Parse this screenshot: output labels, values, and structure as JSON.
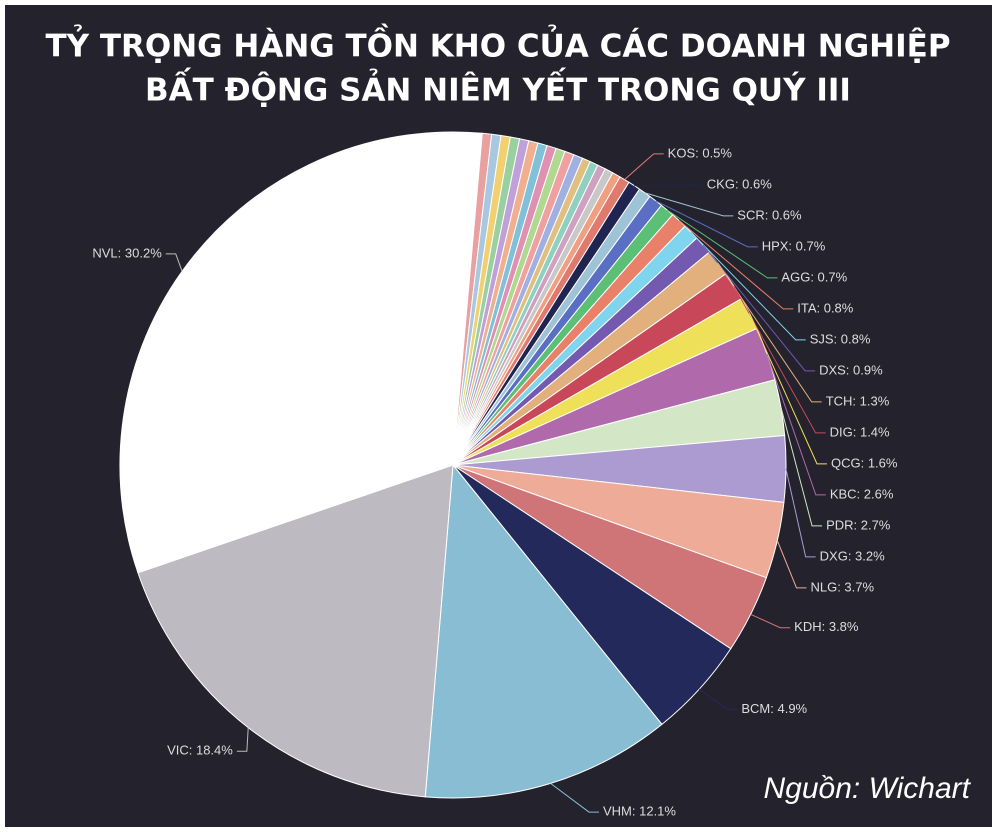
{
  "chart_data": {
    "type": "pie",
    "title": [
      "TỶ TRỌNG HÀNG TỒN KHO CỦA CÁC DOANH NGHIỆP",
      "BẤT ĐỘNG SẢN NIÊM YẾT TRONG QUÝ III"
    ],
    "source": "Nguồn: Wichart",
    "values": [
      1.4,
      0.45,
      0.45,
      0.45,
      0.45,
      0.45,
      0.45,
      0.45,
      0.45,
      0.45,
      0.45,
      0.45,
      0.4,
      0.4,
      0.4,
      0.4,
      0.4,
      0.5,
      0.6,
      0.6,
      0.7,
      0.7,
      0.8,
      0.8,
      0.9,
      1.3,
      1.4,
      1.6,
      2.6,
      2.7,
      3.2,
      3.7,
      3.8,
      4.9,
      12.1,
      18.4,
      30.2
    ],
    "value_labels": [
      null,
      null,
      null,
      null,
      null,
      null,
      null,
      null,
      null,
      null,
      null,
      null,
      null,
      null,
      null,
      null,
      null,
      "KOS: 0.5%",
      "CKG: 0.6%",
      "SCR: 0.6%",
      "HPX: 0.7%",
      "AGG: 0.7%",
      "ITA: 0.8%",
      "SJS: 0.8%",
      "DXS: 0.9%",
      "TCH: 1.3%",
      "DIG: 1.4%",
      "QCG: 1.6%",
      "KBC: 2.6%",
      "PDR: 2.7%",
      "DXG: 3.2%",
      "NLG: 3.7%",
      "KDH: 3.8%",
      "BCM: 4.9%",
      "VHM: 12.1%",
      "VIC: 18.4%",
      "NVL: 30.2%"
    ],
    "colors": [
      "#ffffff",
      "#e8a0a0",
      "#a8c8e0",
      "#f0d070",
      "#9ad0a0",
      "#c0a0d8",
      "#f0b090",
      "#80c0d8",
      "#e090b0",
      "#b0d890",
      "#f0a0a0",
      "#a0b0e0",
      "#e0c080",
      "#90d0c0",
      "#d0a0c0",
      "#c8c8c8",
      "#f0a080",
      "#e07a6f",
      "#1f2450",
      "#9ec3d6",
      "#5a6fc4",
      "#5cbf76",
      "#e8806a",
      "#7fd5ee",
      "#7359b0",
      "#e2b07c",
      "#c8485a",
      "#efe05a",
      "#b06aab",
      "#d3e6c6",
      "#ab9bd0",
      "#eeab98",
      "#cf7577",
      "#23295a",
      "#89bdd3",
      "#bdbbc1",
      "#ffffff"
    ]
  }
}
